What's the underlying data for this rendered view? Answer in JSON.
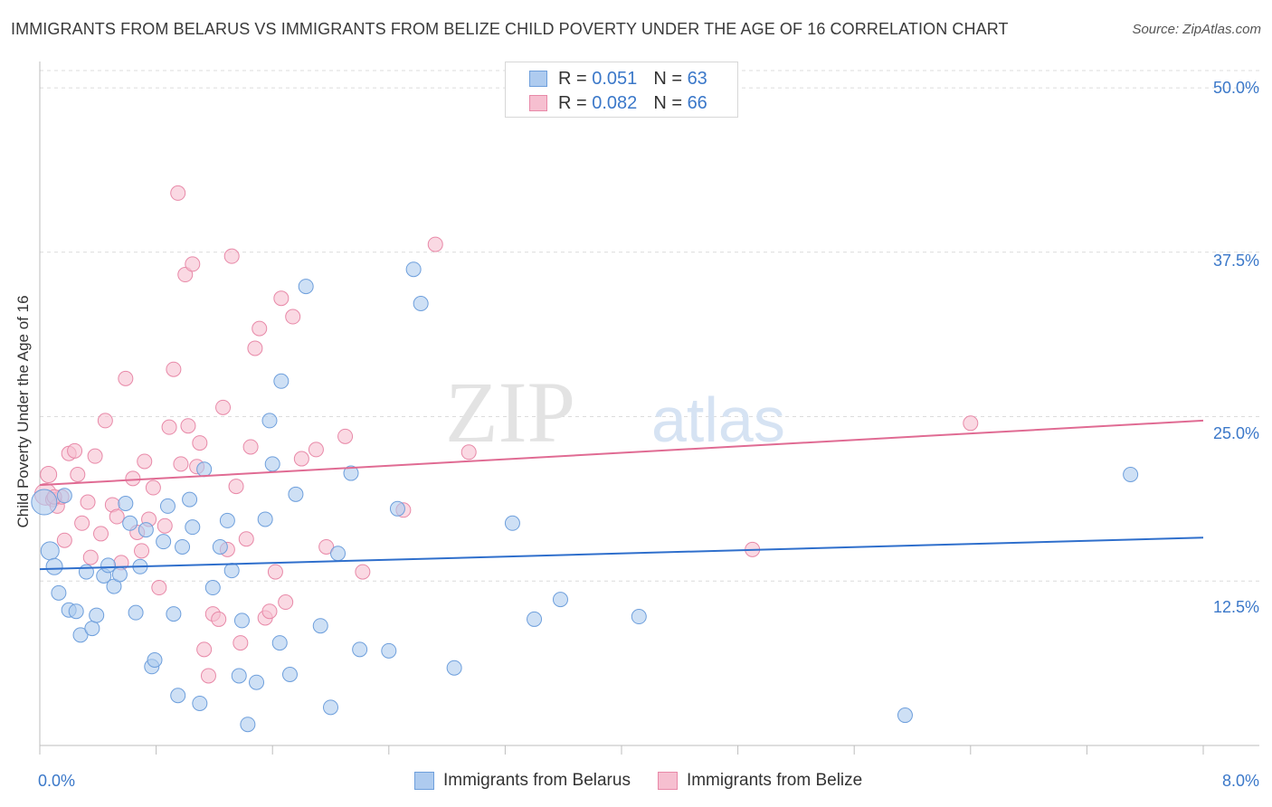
{
  "title": "IMMIGRANTS FROM BELARUS VS IMMIGRANTS FROM BELIZE CHILD POVERTY UNDER THE AGE OF 16 CORRELATION CHART",
  "source": "Source: ZipAtlas.com",
  "watermark": {
    "zip": "ZIP",
    "atlas": "atlas"
  },
  "legend": {
    "r_label": "R =",
    "n_label": "N =",
    "belarus": {
      "r": "0.051",
      "n": "63"
    },
    "belize": {
      "r": "0.082",
      "n": "66"
    }
  },
  "colors": {
    "belarus_fill": "#aecbef",
    "belarus_stroke": "#6e9fdc",
    "belarus_line": "#2f6fcc",
    "belize_fill": "#f6bfd0",
    "belize_stroke": "#e889a8",
    "belize_line": "#e06b93",
    "tick_text": "#3b78c9",
    "grid": "#dcdcdc"
  },
  "chart_data": {
    "type": "scatter",
    "title": "IMMIGRANTS FROM BELARUS VS IMMIGRANTS FROM BELIZE CHILD POVERTY UNDER THE AGE OF 16 CORRELATION CHART",
    "xlabel": "",
    "ylabel": "Child Poverty Under the Age of 16",
    "xlim": [
      0,
      8.0
    ],
    "ylim": [
      0,
      52.0
    ],
    "x_tick_labels": [
      "0.0%",
      "8.0%"
    ],
    "y_ticks": [
      12.5,
      25.0,
      37.5,
      50.0
    ],
    "y_tick_labels": [
      "12.5%",
      "25.0%",
      "37.5%",
      "50.0%"
    ],
    "grid": true,
    "legend_position": "top-center",
    "series": [
      {
        "name": "Immigrants from Belarus",
        "r": 0.051,
        "n": 63,
        "trend": [
          [
            0,
            13.4
          ],
          [
            8.0,
            15.8
          ]
        ],
        "points": [
          [
            0.03,
            18.5,
            14
          ],
          [
            0.07,
            14.8,
            10
          ],
          [
            0.1,
            13.6,
            9
          ],
          [
            0.13,
            11.6,
            8
          ],
          [
            0.17,
            19.0,
            8
          ],
          [
            0.2,
            10.3,
            8
          ],
          [
            0.25,
            10.2,
            8
          ],
          [
            0.28,
            8.4,
            8
          ],
          [
            0.32,
            13.2,
            8
          ],
          [
            0.36,
            8.9,
            8
          ],
          [
            0.39,
            9.9,
            8
          ],
          [
            0.44,
            12.9,
            8
          ],
          [
            0.47,
            13.7,
            8
          ],
          [
            0.51,
            12.1,
            8
          ],
          [
            0.55,
            13.0,
            8
          ],
          [
            0.59,
            18.4,
            8
          ],
          [
            0.62,
            16.9,
            8
          ],
          [
            0.66,
            10.1,
            8
          ],
          [
            0.69,
            13.6,
            8
          ],
          [
            0.73,
            16.4,
            8
          ],
          [
            0.77,
            6.0,
            8
          ],
          [
            0.79,
            6.5,
            8
          ],
          [
            0.85,
            15.5,
            8
          ],
          [
            0.88,
            18.2,
            8
          ],
          [
            0.92,
            10.0,
            8
          ],
          [
            0.95,
            3.8,
            8
          ],
          [
            0.98,
            15.1,
            8
          ],
          [
            1.03,
            18.7,
            8
          ],
          [
            1.05,
            16.6,
            8
          ],
          [
            1.1,
            3.2,
            8
          ],
          [
            1.13,
            21.0,
            8
          ],
          [
            1.19,
            12.0,
            8
          ],
          [
            1.24,
            15.1,
            8
          ],
          [
            1.29,
            17.1,
            8
          ],
          [
            1.32,
            13.3,
            8
          ],
          [
            1.37,
            5.3,
            8
          ],
          [
            1.39,
            9.5,
            8
          ],
          [
            1.43,
            1.6,
            8
          ],
          [
            1.49,
            4.8,
            8
          ],
          [
            1.55,
            17.2,
            8
          ],
          [
            1.58,
            24.7,
            8
          ],
          [
            1.6,
            21.4,
            8
          ],
          [
            1.65,
            7.8,
            8
          ],
          [
            1.66,
            27.7,
            8
          ],
          [
            1.72,
            5.4,
            8
          ],
          [
            1.76,
            19.1,
            8
          ],
          [
            1.83,
            34.9,
            8
          ],
          [
            1.93,
            9.1,
            8
          ],
          [
            2.0,
            2.9,
            8
          ],
          [
            2.05,
            14.6,
            8
          ],
          [
            2.14,
            20.7,
            8
          ],
          [
            2.2,
            7.3,
            8
          ],
          [
            2.4,
            7.2,
            8
          ],
          [
            2.46,
            18.0,
            8
          ],
          [
            2.57,
            36.2,
            8
          ],
          [
            2.62,
            33.6,
            8
          ],
          [
            2.85,
            5.9,
            8
          ],
          [
            3.25,
            16.9,
            8
          ],
          [
            3.4,
            9.6,
            8
          ],
          [
            3.58,
            11.1,
            8
          ],
          [
            4.12,
            9.8,
            8
          ],
          [
            5.95,
            2.3,
            8
          ],
          [
            7.5,
            20.6,
            8
          ]
        ]
      },
      {
        "name": "Immigrants from Belize",
        "r": 0.082,
        "n": 66,
        "trend": [
          [
            0,
            19.8
          ],
          [
            8.0,
            24.7
          ]
        ],
        "points": [
          [
            0.04,
            19.1,
            12
          ],
          [
            0.06,
            20.6,
            9
          ],
          [
            0.09,
            18.7,
            8
          ],
          [
            0.12,
            18.2,
            8
          ],
          [
            0.15,
            18.9,
            8
          ],
          [
            0.17,
            15.6,
            8
          ],
          [
            0.2,
            22.2,
            8
          ],
          [
            0.24,
            22.4,
            8
          ],
          [
            0.26,
            20.6,
            8
          ],
          [
            0.29,
            16.9,
            8
          ],
          [
            0.33,
            18.5,
            8
          ],
          [
            0.35,
            14.3,
            8
          ],
          [
            0.38,
            22.0,
            8
          ],
          [
            0.42,
            16.1,
            8
          ],
          [
            0.45,
            24.7,
            8
          ],
          [
            0.5,
            18.3,
            8
          ],
          [
            0.53,
            17.4,
            8
          ],
          [
            0.56,
            13.9,
            8
          ],
          [
            0.59,
            27.9,
            8
          ],
          [
            0.64,
            20.3,
            8
          ],
          [
            0.67,
            16.2,
            8
          ],
          [
            0.72,
            21.6,
            8
          ],
          [
            0.75,
            17.2,
            8
          ],
          [
            0.78,
            19.6,
            8
          ],
          [
            0.82,
            12.0,
            8
          ],
          [
            0.86,
            16.7,
            8
          ],
          [
            0.89,
            24.2,
            8
          ],
          [
            0.92,
            28.6,
            8
          ],
          [
            0.95,
            42.0,
            8
          ],
          [
            0.97,
            21.4,
            8
          ],
          [
            1.0,
            35.8,
            8
          ],
          [
            1.02,
            24.3,
            8
          ],
          [
            1.05,
            36.6,
            8
          ],
          [
            1.08,
            21.2,
            8
          ],
          [
            1.1,
            23.0,
            8
          ],
          [
            1.13,
            7.3,
            8
          ],
          [
            1.16,
            5.3,
            8
          ],
          [
            1.19,
            10.0,
            8
          ],
          [
            1.23,
            9.6,
            8
          ],
          [
            1.26,
            25.7,
            8
          ],
          [
            1.29,
            14.9,
            8
          ],
          [
            1.32,
            37.2,
            8
          ],
          [
            1.35,
            19.7,
            8
          ],
          [
            1.38,
            7.8,
            8
          ],
          [
            1.42,
            15.7,
            8
          ],
          [
            1.45,
            22.7,
            8
          ],
          [
            1.48,
            30.2,
            8
          ],
          [
            1.51,
            31.7,
            8
          ],
          [
            1.55,
            9.7,
            8
          ],
          [
            1.58,
            10.2,
            8
          ],
          [
            1.62,
            13.2,
            8
          ],
          [
            1.66,
            34.0,
            8
          ],
          [
            1.69,
            10.9,
            8
          ],
          [
            1.74,
            32.6,
            8
          ],
          [
            1.8,
            21.8,
            8
          ],
          [
            1.9,
            22.5,
            8
          ],
          [
            1.97,
            15.1,
            8
          ],
          [
            2.1,
            23.5,
            8
          ],
          [
            2.22,
            13.2,
            8
          ],
          [
            2.5,
            17.9,
            8
          ],
          [
            2.72,
            38.1,
            8
          ],
          [
            2.95,
            22.3,
            8
          ],
          [
            4.9,
            14.9,
            8
          ],
          [
            6.4,
            24.5,
            8
          ],
          [
            0.1,
            18.9,
            8
          ],
          [
            0.7,
            14.8,
            8
          ]
        ]
      }
    ]
  }
}
